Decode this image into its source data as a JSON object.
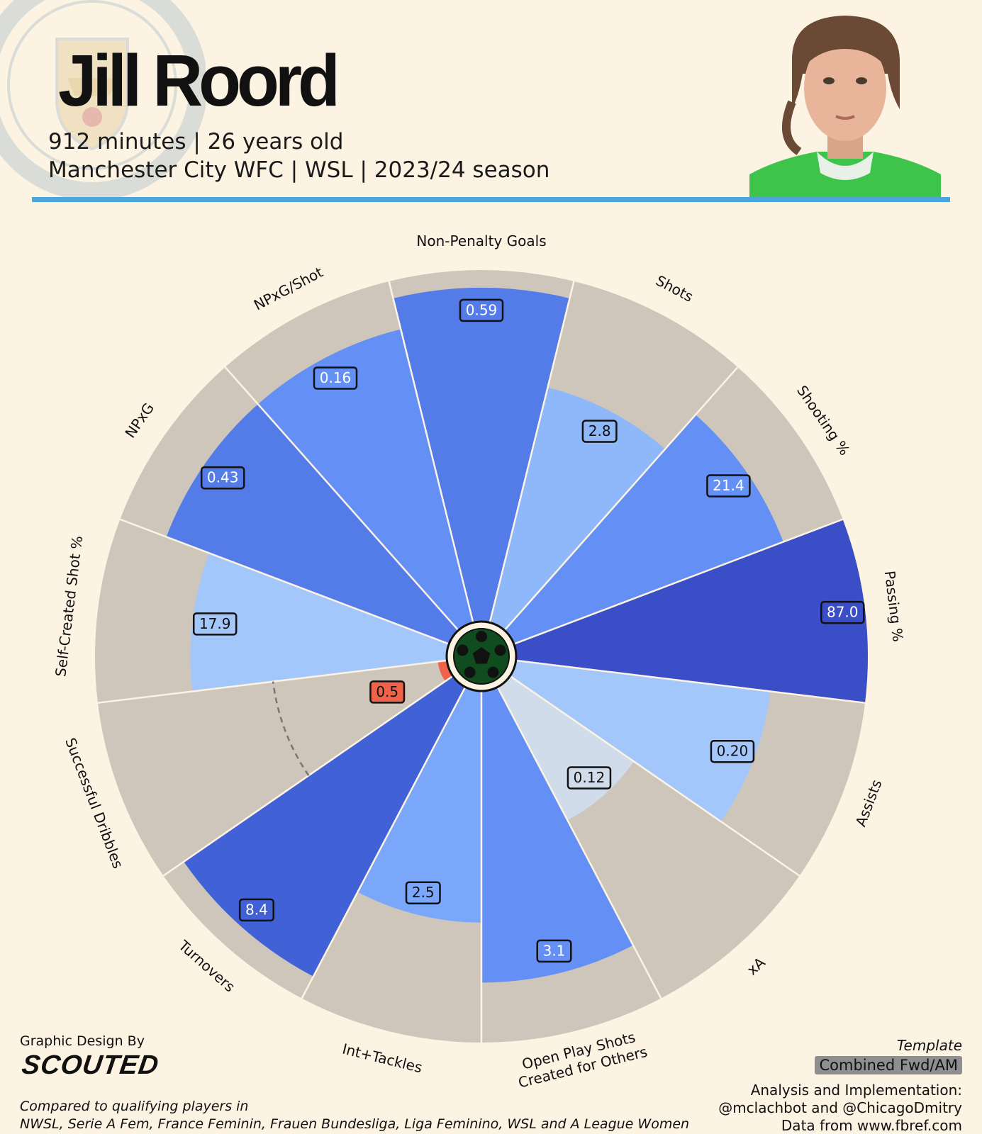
{
  "header": {
    "player_name": "Jill Roord",
    "subtitle_line1": "912 minutes | 26 years old",
    "subtitle_line2": "Manchester City WFC | WSL | 2023/24 season",
    "rule_color": "#4aa6dc"
  },
  "footer": {
    "design_by": "Graphic Design By",
    "brand": "SCOUTED",
    "compared_line1": "Compared to qualifying players in",
    "compared_line2": "NWSL, Serie A Fem, France Feminin, Frauen Bundesliga, Liga Feminino, WSL and A League Women",
    "template_label": "Template",
    "template_name": "Combined Fwd/AM",
    "credit_line1": "Analysis and Implementation:",
    "credit_line2": "@mclachbot and @ChicagoDmitry",
    "credit_line3": "Data from www.fbref.com"
  },
  "chart_data": {
    "type": "pizza",
    "radial_scale": "percentile",
    "rlim": [
      0,
      100
    ],
    "background_color": "#cfc6bb",
    "categories": [
      "Non-Penalty Goals",
      "Shots",
      "Shooting %",
      "Passing %",
      "Assists",
      "xA",
      "Open Play Shots Created for Others",
      "Int+Tackles",
      "Turnovers",
      "Successful Dribbles",
      "Self-Created Shot %",
      "NPxG",
      "NPxG/Shot"
    ],
    "values": [
      "0.59",
      "2.8",
      "21.4",
      "87.0",
      "0.20",
      "0.12",
      "3.1",
      "2.5",
      "8.4",
      "",
      "17.9",
      "0.43",
      "0.16"
    ],
    "percentiles": [
      95,
      69,
      82,
      100,
      73,
      43,
      83,
      66,
      93,
      3,
      73,
      86,
      86
    ],
    "colors": [
      "#547ce8",
      "#8eb8fa",
      "#6490f5",
      "#3a4ec8",
      "#a3c6fb",
      "#d1dcea",
      "#6490f5",
      "#7ba7fa",
      "#4162d6",
      "#f0634b",
      "#a3c6fb",
      "#547ce8",
      "#6490f5"
    ],
    "special_value": "0.5",
    "reference_ring_percentile": 50
  }
}
